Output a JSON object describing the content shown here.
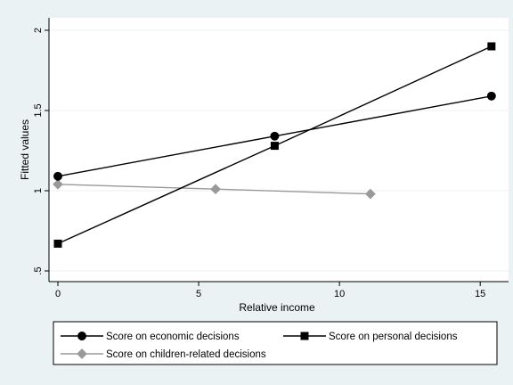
{
  "chart_data": {
    "type": "line",
    "title": "",
    "xlabel": "Relative income",
    "ylabel": "Fitted values",
    "xlim": [
      0,
      15.5
    ],
    "ylim": [
      0.5,
      2.0
    ],
    "x_ticks": [
      0,
      5,
      10,
      15
    ],
    "x_tick_labels": [
      "0",
      "5",
      "10",
      "15"
    ],
    "y_ticks": [
      0.5,
      1.0,
      1.5,
      2.0
    ],
    "y_tick_labels": [
      ".5",
      "1",
      "1.5",
      "2"
    ],
    "grid": "horizontal",
    "legend_position": "bottom",
    "series": [
      {
        "name": "Score on economic decisions",
        "marker": "circle",
        "color": "#000000",
        "x": [
          0,
          7.7,
          15.4
        ],
        "y": [
          1.09,
          1.34,
          1.59
        ]
      },
      {
        "name": "Score on personal decisions",
        "marker": "square",
        "color": "#000000",
        "x": [
          0,
          7.7,
          15.4
        ],
        "y": [
          0.67,
          1.28,
          1.9
        ]
      },
      {
        "name": "Score on children-related decisions",
        "marker": "diamond",
        "color": "#999999",
        "x": [
          0,
          5.6,
          11.1
        ],
        "y": [
          1.04,
          1.01,
          0.98
        ]
      }
    ]
  },
  "colors": {
    "background": "#eaf2f3",
    "plot_background": "#ffffff",
    "grid": "#eaf2f3",
    "axis": "#000000"
  }
}
